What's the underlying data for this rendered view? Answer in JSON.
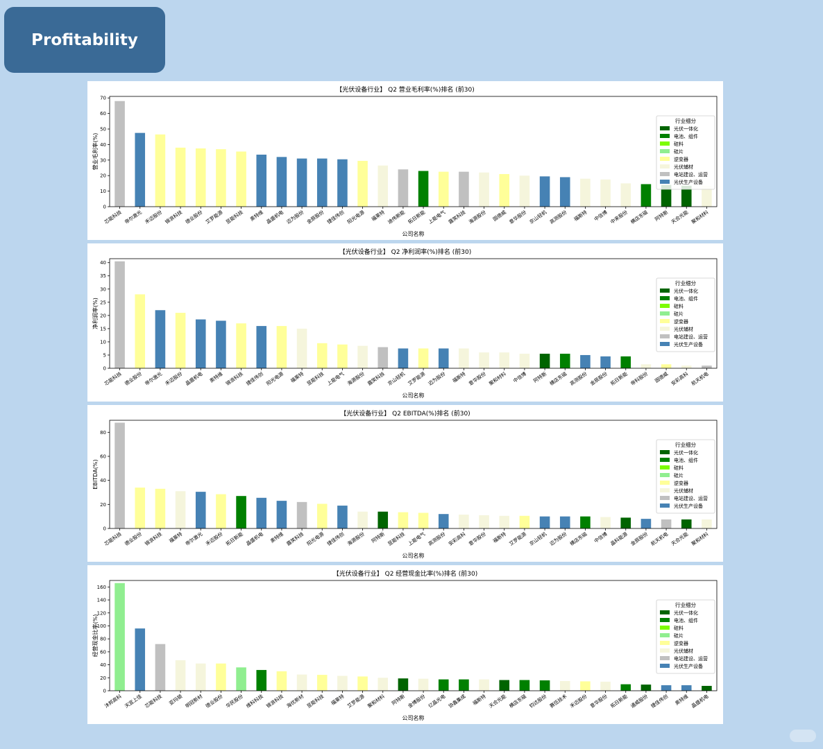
{
  "header": {
    "title": "Profitability"
  },
  "legend": {
    "title": "行业细分",
    "items": [
      {
        "label": "光伏一体化",
        "color": "#006400"
      },
      {
        "label": "电池、组件",
        "color": "#008000"
      },
      {
        "label": "硅料",
        "color": "#7cfc00"
      },
      {
        "label": "硅片",
        "color": "#90ee90"
      },
      {
        "label": "逆变器",
        "color": "#ffff99"
      },
      {
        "label": "光伏辅材",
        "color": "#f5f5dc"
      },
      {
        "label": "电站建设、运营",
        "color": "#c0c0c0"
      },
      {
        "label": "光伏生产设备",
        "color": "#4682b4"
      }
    ]
  },
  "chart_data": [
    {
      "type": "bar",
      "title": "【光伏设备行业】 Q2 营业毛利率(%)排名 (前30)",
      "xlabel": "公司名称",
      "ylabel": "营业毛利率(%)",
      "ylim": [
        0,
        71
      ],
      "yticks": [
        0,
        10,
        20,
        30,
        40,
        50,
        60,
        70
      ],
      "categories": [
        "芯能科技",
        "帝尔激光",
        "禾迈股份",
        "锦浪科技",
        "德业股份",
        "艾罗能源",
        "昱能科技",
        "奥特维",
        "晶盛机电",
        "迈为股份",
        "金辰股份",
        "捷佳伟创",
        "阳光电源",
        "福莱特",
        "迪伟新能",
        "拓日新能",
        "上能电气",
        "露笑科技",
        "海源股份",
        "固德威",
        "意华股份",
        "京山轻机",
        "高测股份",
        "福斯特",
        "中信博",
        "中来股份",
        "横店东磁",
        "阿特斯",
        "天合光能",
        "聚和材料"
      ],
      "values": [
        68,
        47.5,
        46.5,
        38,
        37.5,
        37,
        35.5,
        33.5,
        32,
        31,
        31,
        30.5,
        29.5,
        26.5,
        24,
        23,
        22.5,
        22.5,
        22,
        21,
        20,
        19.5,
        19,
        18,
        17.5,
        15,
        14.5,
        14,
        13.5,
        13.5
      ],
      "segments": [
        "电站建设、运营",
        "光伏生产设备",
        "逆变器",
        "逆变器",
        "逆变器",
        "逆变器",
        "逆变器",
        "光伏生产设备",
        "光伏生产设备",
        "光伏生产设备",
        "光伏生产设备",
        "光伏生产设备",
        "逆变器",
        "光伏辅材",
        "电站建设、运营",
        "电池、组件",
        "逆变器",
        "电站建设、运营",
        "光伏辅材",
        "逆变器",
        "光伏辅材",
        "光伏生产设备",
        "光伏生产设备",
        "光伏辅材",
        "光伏辅材",
        "光伏辅材",
        "电池、组件",
        "光伏一体化",
        "光伏一体化",
        "光伏辅材"
      ],
      "legend_position": "right"
    },
    {
      "type": "bar",
      "title": "【光伏设备行业】 Q2 净利润率(%)排名 (前30)",
      "xlabel": "公司名称",
      "ylabel": "净利润率(%)",
      "ylim": [
        0,
        41.5
      ],
      "yticks": [
        0,
        5,
        10,
        15,
        20,
        25,
        30,
        35,
        40
      ],
      "categories": [
        "芯能科技",
        "德业股份",
        "帝尔激光",
        "禾迈股份",
        "晶盛机电",
        "奥特维",
        "锦浪科技",
        "捷佳伟创",
        "阳光电源",
        "福莱特",
        "昱能科技",
        "上能电气",
        "海源股份",
        "露笑科技",
        "京山轻机",
        "艾罗能源",
        "迈为股份",
        "福斯特",
        "意华股份",
        "聚和材料",
        "中信博",
        "阿特斯",
        "横店东磁",
        "高测股份",
        "金辰股份",
        "拓日新能",
        "帝科股份",
        "固德威",
        "安彩高科",
        "航天机电"
      ],
      "values": [
        40.5,
        28,
        22,
        21,
        18.5,
        18,
        17,
        16,
        16,
        15,
        9.5,
        9,
        8.5,
        8,
        7.5,
        7.5,
        7.5,
        7.5,
        6,
        6,
        5.5,
        5.5,
        5.5,
        5,
        4.5,
        4.5,
        1.5,
        1.5,
        1,
        1
      ],
      "segments": [
        "电站建设、运营",
        "逆变器",
        "光伏生产设备",
        "逆变器",
        "光伏生产设备",
        "光伏生产设备",
        "逆变器",
        "光伏生产设备",
        "逆变器",
        "光伏辅材",
        "逆变器",
        "逆变器",
        "光伏辅材",
        "电站建设、运营",
        "光伏生产设备",
        "逆变器",
        "光伏生产设备",
        "光伏辅材",
        "光伏辅材",
        "光伏辅材",
        "光伏辅材",
        "光伏一体化",
        "电池、组件",
        "光伏生产设备",
        "光伏生产设备",
        "电池、组件",
        "光伏辅材",
        "逆变器",
        "光伏辅材",
        "电站建设、运营"
      ],
      "legend_position": "right"
    },
    {
      "type": "bar",
      "title": "【光伏设备行业】 Q2 EBITDA(%)排名 (前30)",
      "xlabel": "公司名称",
      "ylabel": "EBITDA(%)",
      "ylim": [
        0,
        90
      ],
      "yticks": [
        0,
        20,
        40,
        60,
        80
      ],
      "categories": [
        "芯能科技",
        "德业股份",
        "锦浪科技",
        "福莱特",
        "帝尔激光",
        "禾迈股份",
        "拓日新能",
        "晶盛机电",
        "奥特维",
        "露笑科技",
        "阳光电源",
        "捷佳伟创",
        "海源股份",
        "阿特斯",
        "昱能科技",
        "上能电气",
        "高测股份",
        "安彩高科",
        "意华股份",
        "福斯特",
        "艾罗能源",
        "京山轻机",
        "迈为股份",
        "横店东磁",
        "中信博",
        "晶科能源",
        "金辰股份",
        "航天机电",
        "天合光能",
        "聚和材料"
      ],
      "values": [
        88,
        34,
        33,
        31,
        30.5,
        28.5,
        27,
        25.5,
        23,
        22,
        20.5,
        19,
        14,
        14,
        13.5,
        13,
        12,
        11.5,
        11,
        10.5,
        10.5,
        10,
        10,
        10,
        9.5,
        9,
        8,
        7.5,
        7.5,
        7.5
      ],
      "segments": [
        "电站建设、运营",
        "逆变器",
        "逆变器",
        "光伏辅材",
        "光伏生产设备",
        "逆变器",
        "电池、组件",
        "光伏生产设备",
        "光伏生产设备",
        "电站建设、运营",
        "逆变器",
        "光伏生产设备",
        "光伏辅材",
        "光伏一体化",
        "逆变器",
        "逆变器",
        "光伏生产设备",
        "光伏辅材",
        "光伏辅材",
        "光伏辅材",
        "逆变器",
        "光伏生产设备",
        "光伏生产设备",
        "电池、组件",
        "光伏辅材",
        "光伏一体化",
        "光伏生产设备",
        "电站建设、运营",
        "光伏一体化",
        "光伏辅材"
      ],
      "legend_position": "right"
    },
    {
      "type": "bar",
      "title": "【光伏设备行业】 Q2 经营现金比率(%)排名 (前30)",
      "xlabel": "公司名称",
      "ylabel": "经营现金比率(%)",
      "ylim": [
        0,
        170
      ],
      "yticks": [
        0,
        20,
        40,
        60,
        80,
        100,
        120,
        140,
        160
      ],
      "categories": [
        "沐邦高科",
        "天宜上佳",
        "芯能科技",
        "亚玛顿",
        "明冠新材",
        "德业股份",
        "华民股份",
        "维科科技",
        "锦浪科技",
        "海优新材",
        "昱能科技",
        "福莱特",
        "艾罗能源",
        "聚和材料",
        "阿特斯",
        "金博股份",
        "亿晶光电",
        "协鑫集成",
        "福斯特",
        "天合光能",
        "横店东磁",
        "钧达股份",
        "赛伍技术",
        "禾迈股份",
        "意华股份",
        "拓日新能",
        "通威股份",
        "捷佳伟创",
        "奥特维",
        "晶盛机电"
      ],
      "values": [
        166,
        96,
        72,
        47,
        42,
        42,
        36,
        32,
        30,
        25,
        24.5,
        23,
        22,
        20,
        19,
        18.5,
        17.5,
        17.5,
        17.5,
        16.5,
        16.5,
        16,
        15,
        14.5,
        14,
        10,
        9.5,
        8.5,
        8.5,
        7.5
      ],
      "segments": [
        "硅片",
        "光伏生产设备",
        "电站建设、运营",
        "光伏辅材",
        "光伏辅材",
        "逆变器",
        "硅片",
        "电池、组件",
        "逆变器",
        "光伏辅材",
        "逆变器",
        "光伏辅材",
        "逆变器",
        "光伏辅材",
        "光伏一体化",
        "光伏辅材",
        "电池、组件",
        "电池、组件",
        "光伏辅材",
        "光伏一体化",
        "电池、组件",
        "电池、组件",
        "光伏辅材",
        "逆变器",
        "光伏辅材",
        "电池、组件",
        "光伏一体化",
        "光伏生产设备",
        "光伏生产设备",
        "光伏一体化"
      ],
      "legend_position": "right"
    }
  ]
}
